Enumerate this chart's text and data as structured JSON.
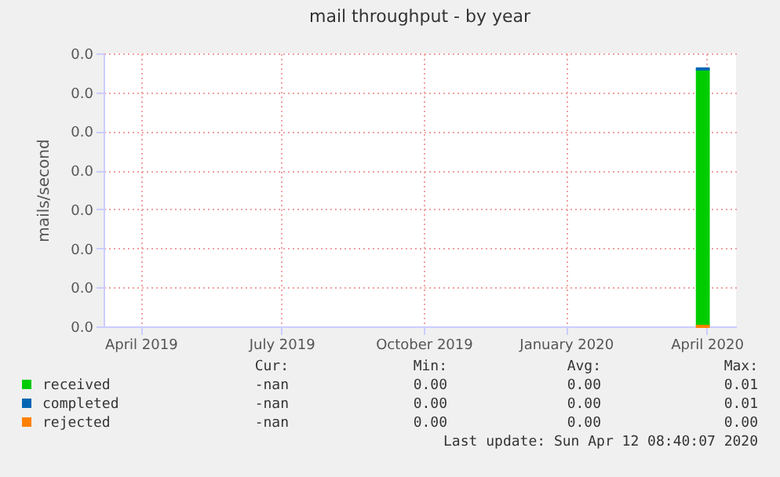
{
  "chart_data": {
    "type": "area",
    "title": "mail throughput - by year",
    "ylabel": "mails/second",
    "xlim": [
      "2019-03-08",
      "2020-04-20"
    ],
    "xticks": [
      {
        "value": "2019-04-01",
        "label": "April 2019"
      },
      {
        "value": "2019-07-01",
        "label": "July 2019"
      },
      {
        "value": "2019-10-01",
        "label": "October 2019"
      },
      {
        "value": "2020-01-01",
        "label": "January 2020"
      },
      {
        "value": "2020-04-01",
        "label": "April 2020"
      }
    ],
    "ylim": [
      0,
      0.014
    ],
    "yticks": [
      {
        "value": 0,
        "label": "0.0"
      },
      {
        "value": 0.002,
        "label": "0.0"
      },
      {
        "value": 0.004,
        "label": "0.0"
      },
      {
        "value": 0.006,
        "label": "0.0"
      },
      {
        "value": 0.008,
        "label": "0.0"
      },
      {
        "value": 0.01,
        "label": "0.0"
      },
      {
        "value": 0.012,
        "label": "0.0"
      },
      {
        "value": 0.014,
        "label": "0.0"
      }
    ],
    "grid": true,
    "legend": "bottom",
    "series": [
      {
        "name": "received",
        "color": "#00cc00",
        "x": [
          "2020-03-25",
          "2020-04-03"
        ],
        "values": [
          0.0132,
          0.0132
        ]
      },
      {
        "name": "completed",
        "type": "line",
        "color": "#0066b3",
        "x": [
          "2020-03-25",
          "2020-04-03"
        ],
        "values": [
          0.0132,
          0.0132
        ]
      },
      {
        "name": "rejected",
        "type": "line",
        "color": "#ff8000",
        "x": [
          "2020-03-25",
          "2020-04-03"
        ],
        "values": [
          0,
          0
        ]
      }
    ],
    "annotations": [
      "Cur:",
      "Min:",
      "Avg:",
      "Max:",
      "-nan",
      "0.00",
      "0.00",
      "0.01",
      "-nan",
      "0.00",
      "0.00",
      "0.01",
      "-nan",
      "0.00",
      "0.00",
      "0.00",
      "Last update: Sun Apr 12 08:40:07 2020"
    ]
  }
}
